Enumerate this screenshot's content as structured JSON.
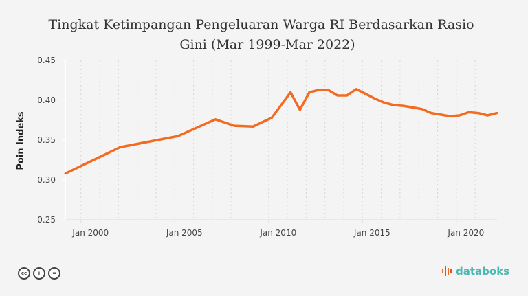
{
  "chart_data": {
    "type": "line",
    "title_line1": "Tingkat Ketimpangan Pengeluaran Warga RI Berdasarkan Rasio",
    "title_line2": "Gini (Mar 1999-Mar 2022)",
    "xlabel": "",
    "ylabel": "Poin Indeks",
    "ylim": [
      0.25,
      0.45
    ],
    "yticks": [
      "0.45",
      "0.40",
      "0.35",
      "0.30",
      "0.25"
    ],
    "xticks": [
      "Jan 2000",
      "Jan 2005",
      "Jan 2010",
      "Jan 2015",
      "Jan 2020"
    ],
    "grid": "vertical dotted yearly",
    "line_color": "#f26b21",
    "series": [
      {
        "name": "Rasio Gini",
        "x": [
          "Mar 1999",
          "Feb 2002",
          "Mar 2005",
          "Mar 2007",
          "Mar 2008",
          "Mar 2009",
          "Mar 2010",
          "Mar 2011",
          "Sep 2011",
          "Mar 2012",
          "Sep 2012",
          "Mar 2013",
          "Sep 2013",
          "Mar 2014",
          "Sep 2014",
          "Mar 2015",
          "Sep 2015",
          "Mar 2016",
          "Sep 2016",
          "Mar 2017",
          "Sep 2017",
          "Mar 2018",
          "Sep 2018",
          "Mar 2019",
          "Sep 2019",
          "Mar 2020",
          "Sep 2020",
          "Mar 2021",
          "Sep 2021",
          "Mar 2022"
        ],
        "values": [
          0.308,
          0.341,
          0.355,
          0.376,
          0.368,
          0.367,
          0.378,
          0.41,
          0.388,
          0.41,
          0.413,
          0.413,
          0.406,
          0.406,
          0.414,
          0.408,
          0.402,
          0.397,
          0.394,
          0.393,
          0.391,
          0.389,
          0.384,
          0.382,
          0.38,
          0.381,
          0.385,
          0.384,
          0.381,
          0.384
        ]
      }
    ]
  },
  "footer": {
    "brand": "databoks",
    "license_icons": [
      "cc",
      "by",
      "nd"
    ]
  }
}
